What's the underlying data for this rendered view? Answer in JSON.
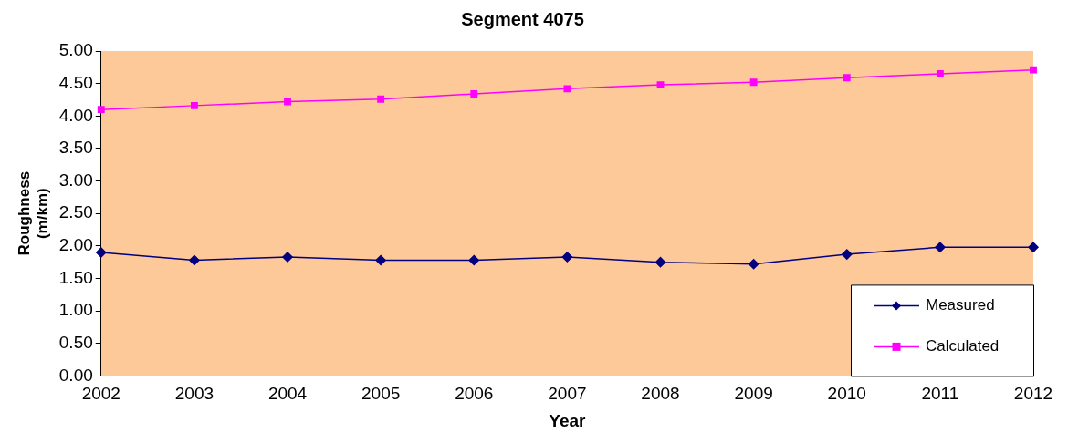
{
  "chart_data": {
    "type": "line",
    "title": "Segment 4075",
    "xlabel": "Year",
    "ylabel": "Roughness (m/km)",
    "categories": [
      "2002",
      "2003",
      "2004",
      "2005",
      "2006",
      "2007",
      "2008",
      "2009",
      "2010",
      "2011",
      "2012"
    ],
    "series": [
      {
        "name": "Measured",
        "color": "#000080",
        "marker": "diamond",
        "values": [
          1.9,
          1.78,
          1.83,
          1.78,
          1.78,
          1.83,
          1.75,
          1.72,
          1.87,
          1.98,
          1.98
        ]
      },
      {
        "name": "Calculated",
        "color": "#ff00ff",
        "marker": "square",
        "values": [
          4.1,
          4.16,
          4.22,
          4.26,
          4.34,
          4.42,
          4.48,
          4.52,
          4.59,
          4.65,
          4.71
        ]
      }
    ],
    "ylim": [
      0,
      5
    ],
    "yticks": [
      {
        "value": 0,
        "label": "0.00"
      },
      {
        "value": 0.5,
        "label": "0.50"
      },
      {
        "value": 1,
        "label": "1.00"
      },
      {
        "value": 1.5,
        "label": "1.50"
      },
      {
        "value": 2,
        "label": "2.00"
      },
      {
        "value": 2.5,
        "label": "2.50"
      },
      {
        "value": 3,
        "label": "3.00"
      },
      {
        "value": 3.5,
        "label": "3.50"
      },
      {
        "value": 4,
        "label": "4.00"
      },
      {
        "value": 4.5,
        "label": "4.50"
      },
      {
        "value": 5,
        "label": "5.00"
      }
    ],
    "grid": false,
    "legend": "bottom right",
    "line_style": "solid"
  }
}
